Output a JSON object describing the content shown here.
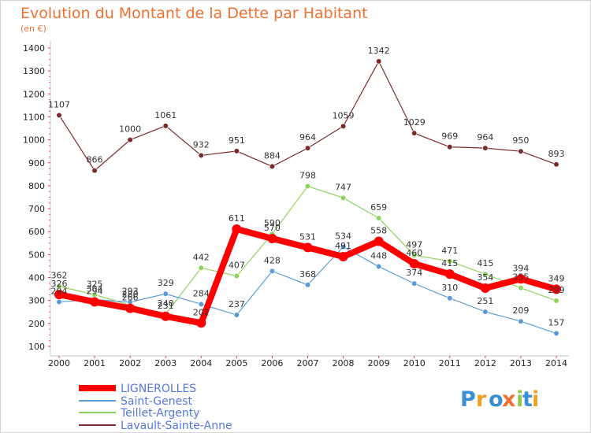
{
  "chart_data": {
    "type": "line",
    "title": "Evolution du Montant de la Dette par Habitant",
    "subtitle": "(en €)",
    "categories": [
      "2000",
      "2001",
      "2002",
      "2003",
      "2004",
      "2005",
      "2006",
      "2007",
      "2008",
      "2009",
      "2010",
      "2011",
      "2012",
      "2013",
      "2014"
    ],
    "ylim": [
      100,
      1400
    ],
    "yticks": [
      "100",
      "200",
      "300",
      "400",
      "500",
      "600",
      "700",
      "800",
      "900",
      "1000",
      "1100",
      "1200",
      "1300",
      "1400"
    ],
    "grid": false,
    "legend": "bottom-left",
    "series": [
      {
        "name": "LIGNEROLLES",
        "color": "#ff0000",
        "values": [
          326,
          294,
          266,
          231,
          202,
          611,
          570,
          531,
          491,
          558,
          460,
          415,
          354,
          394,
          349
        ]
      },
      {
        "name": "Saint-Genest",
        "color": "#5b9bd5",
        "values": [
          294,
          304,
          293,
          329,
          284,
          237,
          428,
          368,
          534,
          448,
          374,
          310,
          251,
          209,
          157
        ]
      },
      {
        "name": "Teillet-Argenty",
        "color": "#8fd35f",
        "values": [
          362,
          325,
          280,
          240,
          442,
          407,
          590,
          798,
          747,
          659,
          497,
          471,
          415,
          355,
          299
        ]
      },
      {
        "name": "Lavault-Sainte-Anne",
        "color": "#7a2a2a",
        "values": [
          1107,
          866,
          1000,
          1061,
          932,
          951,
          884,
          964,
          1059,
          1342,
          1029,
          969,
          964,
          950,
          893
        ]
      }
    ]
  },
  "logo": {
    "text": "Proxiti"
  }
}
